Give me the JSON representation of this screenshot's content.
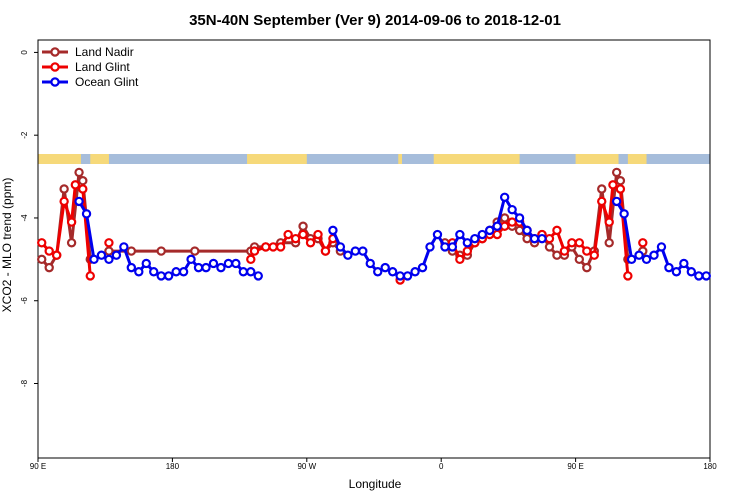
{
  "chart_data": {
    "type": "line",
    "title": "35N-40N September (Ver 9)   2014-09-06 to 2018-12-01",
    "xlabel": "Longitude",
    "ylabel": "XCO2 - MLO trend (ppm)",
    "xlim": [
      90,
      270
    ],
    "ylim": [
      -9.8,
      0.3
    ],
    "x_ticks": [
      {
        "value": 90,
        "label": "90 E"
      },
      {
        "value": 126,
        "label": "180"
      },
      {
        "value": 162,
        "label": "90 W"
      },
      {
        "value": 198,
        "label": "0"
      },
      {
        "value": 234,
        "label": "90 E"
      },
      {
        "value": 270,
        "label": "180"
      }
    ],
    "y_ticks": [
      0,
      -2,
      -4,
      -6,
      -8
    ],
    "legend_position": "top-left",
    "land_mask_colors": {
      "ocean": "#a6bddb",
      "land": "#f6d97a"
    },
    "series": [
      {
        "name": "Land Nadir",
        "color": "#a52a2a",
        "segments": [
          [
            [
              91,
              -5.0
            ],
            [
              93,
              -5.2
            ],
            [
              95,
              -4.9
            ],
            [
              97,
              -3.3
            ],
            [
              99,
              -4.6
            ],
            [
              101,
              -2.9
            ],
            [
              102,
              -3.1
            ],
            [
              104,
              -5.0
            ]
          ],
          [
            [
              109,
              -4.8
            ],
            [
              115,
              -4.8
            ],
            [
              123,
              -4.8
            ],
            [
              132,
              -4.8
            ],
            [
              147,
              -4.8
            ],
            [
              148,
              -4.7
            ],
            [
              151,
              -4.7
            ],
            [
              155,
              -4.6
            ],
            [
              159,
              -4.6
            ],
            [
              161,
              -4.2
            ],
            [
              163,
              -4.5
            ],
            [
              165,
              -4.5
            ],
            [
              167,
              -4.8
            ],
            [
              169,
              -4.6
            ],
            [
              171,
              -4.8
            ]
          ],
          [
            [
              199,
              -4.6
            ],
            [
              201,
              -4.8
            ],
            [
              203,
              -4.9
            ],
            [
              205,
              -4.9
            ],
            [
              207,
              -4.6
            ],
            [
              209,
              -4.5
            ],
            [
              211,
              -4.3
            ],
            [
              213,
              -4.1
            ],
            [
              215,
              -4.0
            ],
            [
              217,
              -4.2
            ],
            [
              219,
              -4.3
            ],
            [
              221,
              -4.5
            ],
            [
              223,
              -4.6
            ],
            [
              225,
              -4.4
            ],
            [
              227,
              -4.7
            ],
            [
              229,
              -4.9
            ],
            [
              231,
              -4.9
            ],
            [
              233,
              -4.7
            ],
            [
              235,
              -5.0
            ],
            [
              237,
              -5.2
            ],
            [
              239,
              -4.8
            ],
            [
              241,
              -3.3
            ],
            [
              243,
              -4.6
            ],
            [
              245,
              -2.9
            ],
            [
              246,
              -3.1
            ],
            [
              248,
              -5.0
            ]
          ],
          [
            [
              252,
              -4.8
            ]
          ]
        ]
      },
      {
        "name": "Land Glint",
        "color": "#ee0000",
        "segments": [
          [
            [
              91,
              -4.6
            ],
            [
              93,
              -4.8
            ],
            [
              95,
              -4.9
            ],
            [
              97,
              -3.6
            ],
            [
              99,
              -4.1
            ],
            [
              100,
              -3.2
            ],
            [
              102,
              -3.3
            ],
            [
              104,
              -5.4
            ]
          ],
          [
            [
              109,
              -4.6
            ]
          ],
          [
            [
              147,
              -5.0
            ],
            [
              148,
              -4.8
            ],
            [
              151,
              -4.7
            ],
            [
              153,
              -4.7
            ],
            [
              155,
              -4.7
            ],
            [
              157,
              -4.4
            ],
            [
              159,
              -4.5
            ],
            [
              161,
              -4.4
            ],
            [
              163,
              -4.6
            ],
            [
              165,
              -4.4
            ],
            [
              167,
              -4.8
            ],
            [
              169,
              -4.5
            ]
          ],
          [
            [
              187,
              -5.5
            ]
          ],
          [
            [
              201,
              -4.6
            ],
            [
              203,
              -5.0
            ],
            [
              205,
              -4.8
            ],
            [
              207,
              -4.6
            ],
            [
              209,
              -4.5
            ],
            [
              211,
              -4.4
            ],
            [
              213,
              -4.4
            ],
            [
              215,
              -4.2
            ],
            [
              217,
              -4.1
            ],
            [
              219,
              -4.1
            ],
            [
              221,
              -4.3
            ],
            [
              223,
              -4.5
            ],
            [
              225,
              -4.4
            ],
            [
              227,
              -4.5
            ],
            [
              229,
              -4.3
            ],
            [
              231,
              -4.8
            ],
            [
              233,
              -4.6
            ],
            [
              235,
              -4.6
            ],
            [
              237,
              -4.8
            ],
            [
              239,
              -4.9
            ],
            [
              241,
              -3.6
            ],
            [
              243,
              -4.1
            ],
            [
              244,
              -3.2
            ],
            [
              246,
              -3.3
            ],
            [
              248,
              -5.4
            ]
          ],
          [
            [
              252,
              -4.6
            ]
          ]
        ]
      },
      {
        "name": "Ocean Glint",
        "color": "#0000ee",
        "segments": [
          [
            [
              101,
              -3.6
            ],
            [
              103,
              -3.9
            ],
            [
              105,
              -5.0
            ],
            [
              107,
              -4.9
            ],
            [
              109,
              -5.0
            ],
            [
              111,
              -4.9
            ],
            [
              113,
              -4.7
            ],
            [
              115,
              -5.2
            ],
            [
              117,
              -5.3
            ],
            [
              119,
              -5.1
            ],
            [
              121,
              -5.3
            ],
            [
              123,
              -5.4
            ],
            [
              125,
              -5.4
            ],
            [
              127,
              -5.3
            ],
            [
              129,
              -5.3
            ],
            [
              131,
              -5.0
            ],
            [
              133,
              -5.2
            ],
            [
              135,
              -5.2
            ],
            [
              137,
              -5.1
            ],
            [
              139,
              -5.2
            ],
            [
              141,
              -5.1
            ],
            [
              143,
              -5.1
            ],
            [
              145,
              -5.3
            ],
            [
              147,
              -5.3
            ],
            [
              149,
              -5.4
            ]
          ],
          [
            [
              169,
              -4.3
            ],
            [
              171,
              -4.7
            ],
            [
              173,
              -4.9
            ],
            [
              175,
              -4.8
            ],
            [
              177,
              -4.8
            ],
            [
              179,
              -5.1
            ],
            [
              181,
              -5.3
            ],
            [
              183,
              -5.2
            ],
            [
              185,
              -5.3
            ],
            [
              187,
              -5.4
            ],
            [
              189,
              -5.4
            ],
            [
              191,
              -5.3
            ],
            [
              193,
              -5.2
            ],
            [
              195,
              -4.7
            ],
            [
              197,
              -4.4
            ],
            [
              199,
              -4.7
            ],
            [
              201,
              -4.7
            ],
            [
              203,
              -4.4
            ],
            [
              205,
              -4.6
            ],
            [
              207,
              -4.5
            ],
            [
              209,
              -4.4
            ],
            [
              211,
              -4.3
            ],
            [
              213,
              -4.2
            ],
            [
              215,
              -3.5
            ],
            [
              217,
              -3.8
            ],
            [
              219,
              -4.0
            ],
            [
              221,
              -4.3
            ],
            [
              223,
              -4.5
            ],
            [
              225,
              -4.5
            ]
          ],
          [
            [
              245,
              -3.6
            ],
            [
              247,
              -3.9
            ],
            [
              249,
              -5.0
            ],
            [
              251,
              -4.9
            ],
            [
              253,
              -5.0
            ],
            [
              255,
              -4.9
            ],
            [
              257,
              -4.7
            ],
            [
              259,
              -5.2
            ],
            [
              261,
              -5.3
            ],
            [
              263,
              -5.1
            ],
            [
              265,
              -5.3
            ],
            [
              267,
              -5.4
            ],
            [
              269,
              -5.4
            ]
          ]
        ]
      }
    ]
  }
}
